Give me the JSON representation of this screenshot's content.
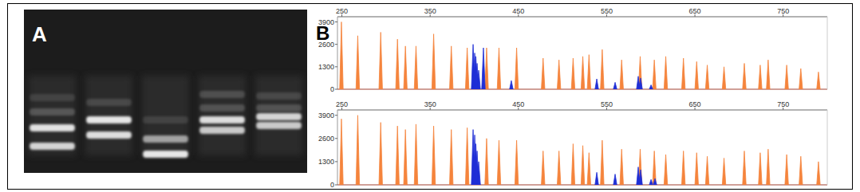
{
  "gel": {
    "label": "A",
    "lanes": 5
  },
  "panel_b": {
    "label": "B"
  },
  "chart_data": [
    {
      "type": "peak",
      "xlim": [
        245,
        800
      ],
      "ylim": [
        0,
        4200
      ],
      "xticks": [
        250,
        350,
        450,
        550,
        650,
        750
      ],
      "yticks": [
        0,
        1300,
        2600,
        3900
      ],
      "grid": false,
      "series": [
        {
          "color": "#f5843c",
          "x": [
            249.5,
            268,
            294,
            313,
            322,
            334,
            354,
            374,
            392,
            414,
            428,
            448,
            478,
            496,
            512,
            523,
            530,
            545,
            567,
            588,
            604,
            617,
            637,
            652,
            664,
            683,
            706,
            724,
            733,
            754,
            770,
            790
          ],
          "values": [
            3900,
            3100,
            3300,
            2900,
            2500,
            2500,
            3200,
            2500,
            2400,
            2400,
            2400,
            2400,
            1800,
            1700,
            1800,
            1900,
            2000,
            2300,
            1700,
            1900,
            1700,
            1900,
            1800,
            1600,
            1400,
            1300,
            1500,
            1400,
            1700,
            1400,
            1200,
            1000
          ]
        },
        {
          "color": "#1f2fd6",
          "x": [
            398.7,
            400.5,
            401.8,
            403.2,
            405,
            410.4,
            442,
            538.8,
            559.6,
            585.8,
            588.5,
            600.3
          ],
          "values": [
            2600,
            2100,
            1900,
            1500,
            1100,
            2400,
            500,
            600,
            400,
            750,
            650,
            250
          ]
        }
      ]
    },
    {
      "type": "peak",
      "xlim": [
        245,
        800
      ],
      "ylim": [
        0,
        4200
      ],
      "xticks": [
        250,
        350,
        450,
        550,
        650,
        750
      ],
      "yticks": [
        0,
        1300,
        2600,
        3900
      ],
      "grid": false,
      "series": [
        {
          "color": "#f5843c",
          "x": [
            249.5,
            268,
            294,
            313,
            322,
            334,
            354,
            374,
            392,
            414,
            428,
            448,
            478,
            496,
            512,
            523,
            530,
            545,
            567,
            588,
            604,
            617,
            637,
            652,
            664,
            683,
            706,
            724,
            733,
            754,
            770,
            790
          ],
          "values": [
            3700,
            3900,
            3500,
            3300,
            3100,
            3400,
            3300,
            3100,
            3200,
            2600,
            2500,
            2500,
            1900,
            1900,
            2300,
            2200,
            1800,
            2500,
            2000,
            2000,
            1900,
            1700,
            1900,
            1800,
            1600,
            1500,
            1900,
            1800,
            2000,
            1700,
            1600,
            1300
          ]
        },
        {
          "color": "#1f2fd6",
          "x": [
            398.7,
            400.5,
            401.8,
            403.2,
            405,
            538.8,
            559.6,
            585.8,
            588.5,
            600.3,
            604.8
          ],
          "values": [
            3100,
            2800,
            2300,
            1900,
            1300,
            700,
            600,
            1000,
            850,
            300,
            350
          ]
        }
      ]
    }
  ]
}
